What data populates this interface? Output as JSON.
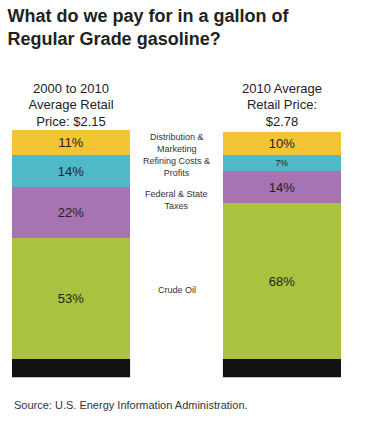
{
  "chart_data": {
    "type": "bar",
    "title": "What do we pay for in a gallon of Regular Grade gasoline?",
    "categories": [
      "2000 to 2010 Average Retail Price: $2.15",
      "2010 Average Retail Price: $2.78"
    ],
    "series": [
      {
        "name": "Crude Oil",
        "color": "#a9c23f",
        "values": [
          53,
          68
        ],
        "value_labels": [
          "53%",
          "68%"
        ]
      },
      {
        "name": "Federal & State Taxes",
        "color": "#a873b3",
        "values": [
          22,
          14
        ],
        "value_labels": [
          "22%",
          "14%"
        ]
      },
      {
        "name": "Refining Costs & Profits",
        "color": "#4fb9c7",
        "values": [
          14,
          7
        ],
        "value_labels": [
          "14%",
          "7%"
        ]
      },
      {
        "name": "Distribution & Marketing",
        "color": "#f3c534",
        "values": [
          11,
          10
        ],
        "value_labels": [
          "11%",
          "10%"
        ]
      }
    ],
    "stacked": true,
    "data_labels": true,
    "tick_labels": "x",
    "grid": false,
    "annotations": [
      "Source: U.S. Energy Information Administration."
    ]
  }
}
